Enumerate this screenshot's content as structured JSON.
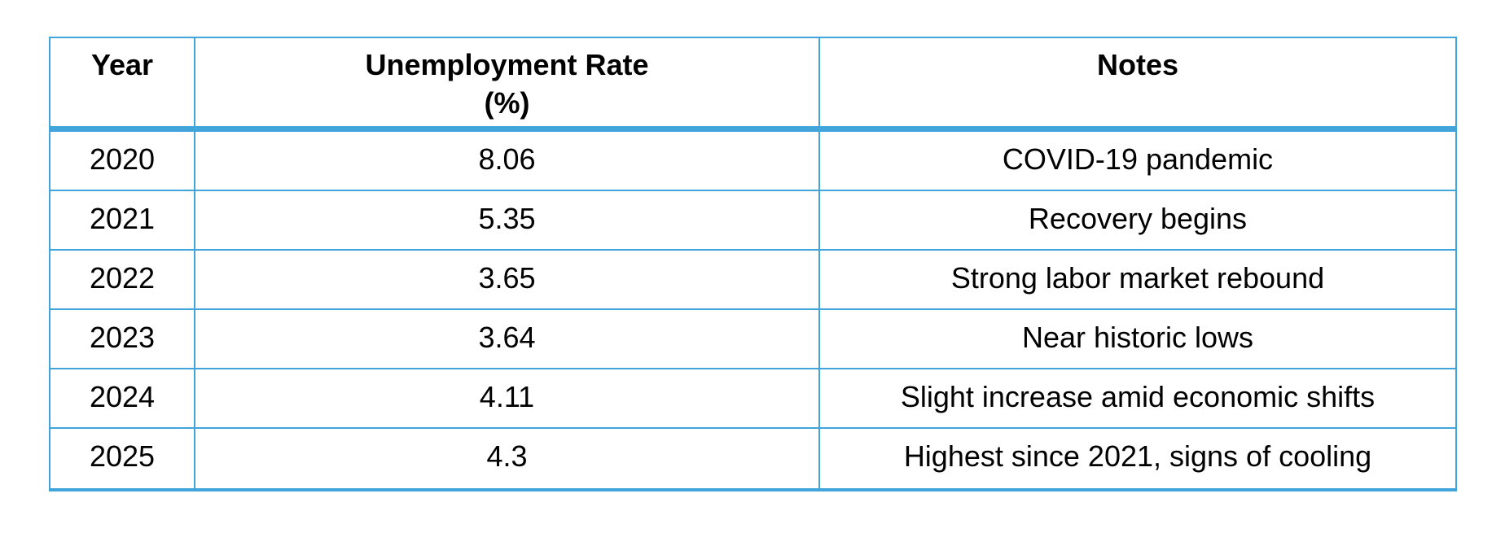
{
  "colors": {
    "border": "#41A5DC",
    "text": "#000000",
    "background": "#FFFFFF"
  },
  "table": {
    "headers": [
      {
        "title": "Year",
        "subtitle": ""
      },
      {
        "title": "Unemployment Rate",
        "subtitle": "(%)"
      },
      {
        "title": "Notes",
        "subtitle": ""
      }
    ],
    "rows": [
      [
        "2020",
        "8.06",
        "COVID-19 pandemic"
      ],
      [
        "2021",
        "5.35",
        "Recovery begins"
      ],
      [
        "2022",
        "3.65",
        "Strong labor market rebound"
      ],
      [
        "2023",
        "3.64",
        "Near historic lows"
      ],
      [
        "2024",
        "4.11",
        "Slight increase amid economic shifts"
      ],
      [
        "2025",
        "4.3",
        "Highest since 2021, signs of cooling"
      ]
    ]
  },
  "chart_data": {
    "type": "table",
    "title": "",
    "columns": [
      "Year",
      "Unemployment Rate (%)",
      "Notes"
    ],
    "years": [
      2020,
      2021,
      2022,
      2023,
      2024,
      2025
    ],
    "unemployment_rate_pct": [
      8.06,
      5.35,
      3.65,
      3.64,
      4.11,
      4.3
    ],
    "notes": [
      "COVID-19 pandemic",
      "Recovery begins",
      "Strong labor market rebound",
      "Near historic lows",
      "Slight increase amid economic shifts",
      "Highest since 2021, signs of cooling"
    ]
  }
}
